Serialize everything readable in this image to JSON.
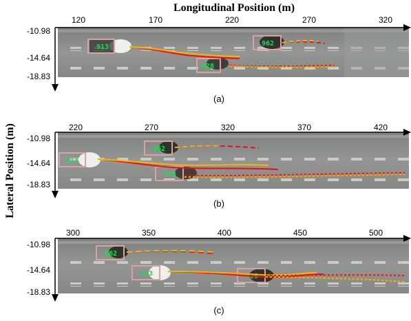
{
  "figure": {
    "x_axis_title": "Longitudinal Position (m)",
    "y_axis_title": "Lateral Position (m)"
  },
  "panels": [
    {
      "caption": "(a)",
      "x_ticks": [
        "120",
        "170",
        "220",
        "270",
        "320"
      ],
      "y_ticks": [
        "-10.98",
        "-14.64",
        "-18.83"
      ],
      "vehicles": [
        {
          "label": "913"
        },
        {
          "label": "928"
        },
        {
          "label": "962"
        }
      ]
    },
    {
      "caption": "(b)",
      "x_ticks": [
        "220",
        "270",
        "320",
        "370",
        "420"
      ],
      "y_ticks": [
        "-10.98",
        "-14.64",
        "-18.83"
      ],
      "vehicles": [
        {
          "label": "913"
        },
        {
          "label": "962"
        },
        {
          "label": "928"
        }
      ]
    },
    {
      "caption": "(c)",
      "x_ticks": [
        "300",
        "350",
        "400",
        "450",
        "500"
      ],
      "y_ticks": [
        "-10.98",
        "-14.64",
        "-18.83"
      ],
      "vehicles": [
        {
          "label": "962"
        },
        {
          "label": "913"
        },
        {
          "label": "928"
        }
      ]
    }
  ],
  "colors": {
    "road": "#8c8f8c",
    "ground_truth": "#e8101a",
    "prediction": "#f5b400",
    "box": "#d9a3a6",
    "label": "#18e048"
  }
}
